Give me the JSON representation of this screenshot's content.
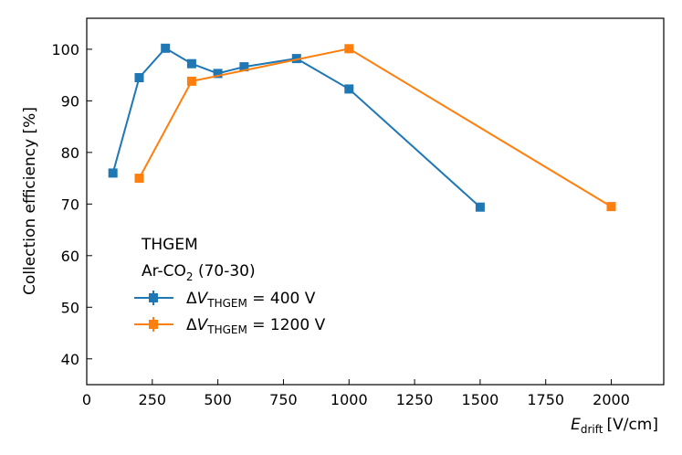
{
  "chart_data": {
    "type": "line",
    "xlabel_main": "E",
    "xlabel_sub": "drift",
    "xlabel_unit": "[V/cm]",
    "ylabel": "Collection efficiency [%]",
    "xlim": [
      0,
      2200
    ],
    "ylim": [
      35,
      106
    ],
    "xticks": [
      0,
      250,
      500,
      750,
      1000,
      1250,
      1500,
      1750,
      2000
    ],
    "yticks": [
      40,
      50,
      60,
      70,
      80,
      90,
      100
    ],
    "grid": false,
    "legend": {
      "placement": "lower-left",
      "title_line1": "THGEM",
      "title_line2_a": "Ar-CO",
      "title_line2_sub": "2",
      "title_line2_b": " (70-30)"
    },
    "series": [
      {
        "name": "ΔV_THGEM = 400 V",
        "label_delta": "Δ",
        "label_v": "V",
        "label_sub": "THGEM",
        "label_val": " = 400 V",
        "color": "#1f77b4",
        "x": [
          100,
          200,
          300,
          400,
          500,
          600,
          800,
          1000,
          1500
        ],
        "y": [
          76.0,
          94.5,
          100.2,
          97.2,
          95.3,
          96.6,
          98.2,
          92.3,
          69.4
        ]
      },
      {
        "name": "ΔV_THGEM = 1200 V",
        "label_delta": "Δ",
        "label_v": "V",
        "label_sub": "THGEM",
        "label_val": " = 1200 V",
        "color": "#ff7f0e",
        "x": [
          200,
          400,
          1000,
          2000
        ],
        "y": [
          75.0,
          93.8,
          100.1,
          69.5
        ]
      }
    ]
  }
}
